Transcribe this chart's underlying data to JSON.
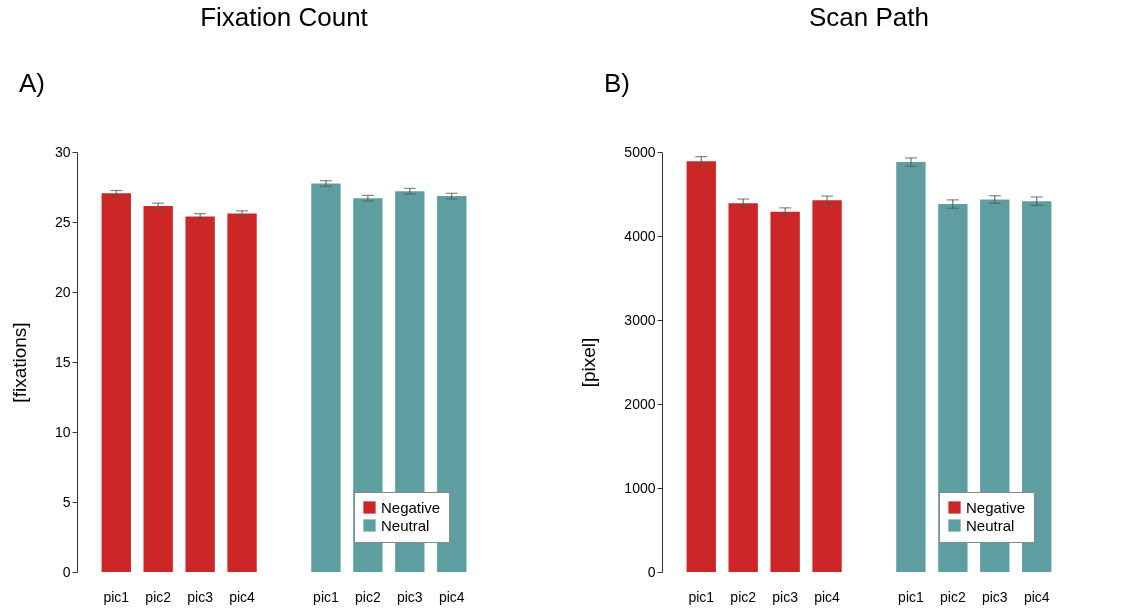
{
  "chart_data": [
    {
      "type": "bar",
      "title": "Fixation Count",
      "ylabel": "[fixations]",
      "annotations": [
        "A)"
      ],
      "categories": [
        "pic1",
        "pic2",
        "pic3",
        "pic4",
        null,
        "pic1",
        "pic2",
        "pic3",
        "pic4"
      ],
      "series": [
        {
          "name": "Negative",
          "color": "#cd2626",
          "values": [
            27.05,
            26.15,
            25.4,
            25.6,
            null,
            null,
            null,
            null,
            null
          ],
          "errors": [
            0.2,
            0.2,
            0.2,
            0.2,
            null,
            null,
            null,
            null,
            null
          ]
        },
        {
          "name": "Neutral",
          "color": "#5f9ea0",
          "values": [
            null,
            null,
            null,
            null,
            null,
            27.75,
            26.7,
            27.2,
            26.85
          ],
          "errors": [
            null,
            null,
            null,
            null,
            null,
            0.2,
            0.2,
            0.2,
            0.2
          ]
        }
      ],
      "ylim": [
        0,
        30
      ],
      "yticks": [
        0,
        5,
        10,
        15,
        20,
        25,
        30
      ],
      "grid": false,
      "legend": "bottom right"
    },
    {
      "type": "bar",
      "title": "Scan Path",
      "ylabel": "[pixel]",
      "annotations": [
        "B)"
      ],
      "categories": [
        "pic1",
        "pic2",
        "pic3",
        "pic4",
        null,
        "pic1",
        "pic2",
        "pic3",
        "pic4"
      ],
      "series": [
        {
          "name": "Negative",
          "color": "#cd2626",
          "values": [
            4890,
            4390,
            4290,
            4425,
            null,
            null,
            null,
            null,
            null
          ],
          "errors": [
            55,
            50,
            45,
            50,
            null,
            null,
            null,
            null,
            null
          ]
        },
        {
          "name": "Neutral",
          "color": "#5f9ea0",
          "values": [
            null,
            null,
            null,
            null,
            null,
            4880,
            4380,
            4435,
            4415
          ],
          "errors": [
            null,
            null,
            null,
            null,
            null,
            50,
            50,
            45,
            50
          ]
        }
      ],
      "ylim": [
        0,
        5000
      ],
      "yticks": [
        0,
        1000,
        2000,
        3000,
        4000,
        5000
      ],
      "grid": false,
      "legend": "bottom right"
    }
  ]
}
